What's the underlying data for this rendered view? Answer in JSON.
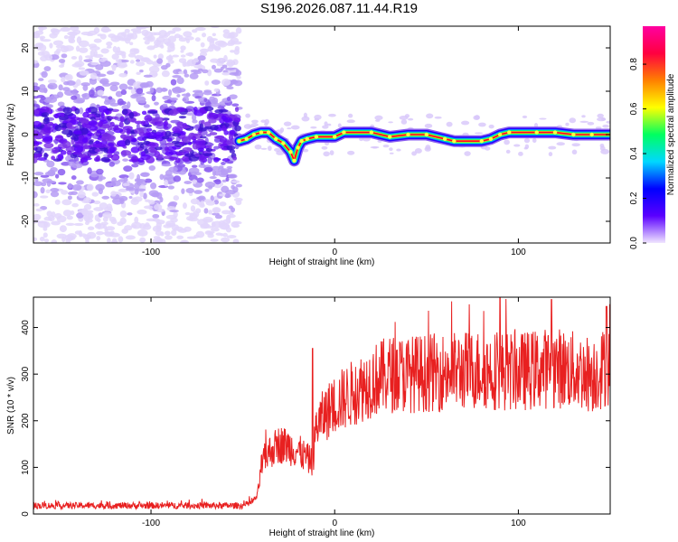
{
  "title": "S196.2026.087.11.44.R19",
  "chart_data": [
    {
      "type": "heatmap",
      "title": "S196.2026.087.11.44.R19",
      "xlabel": "Height of straight line (km)",
      "ylabel": "Frequency (Hz)",
      "xlim": [
        -164,
        150
      ],
      "ylim": [
        -25,
        25
      ],
      "xticks": [
        -100,
        0,
        100
      ],
      "yticks": [
        -20,
        -10,
        0,
        10,
        20
      ],
      "colorbar": {
        "label": "Normalized spectral amplitude",
        "range": [
          0,
          0.97
        ],
        "ticks": [
          0.0,
          0.2,
          0.4,
          0.6,
          0.8
        ],
        "colors": [
          "#f0e6ff",
          "#5a00ff",
          "#0000ff",
          "#00d8ff",
          "#00ff60",
          "#ffff00",
          "#ff8000",
          "#ff0040",
          "#ff00a0"
        ]
      },
      "noise_region_x": [
        -164,
        -52
      ],
      "ridge": {
        "x": [
          -52,
          -48,
          -44,
          -40,
          -36,
          -32,
          -28,
          -24,
          -22,
          -20,
          -18,
          -15,
          -10,
          0,
          5,
          20,
          30,
          40,
          50,
          60,
          65,
          80,
          85,
          90,
          95,
          110,
          120,
          130,
          140,
          150
        ],
        "y": [
          -1.5,
          -1,
          0,
          0.5,
          0.5,
          -1,
          -2,
          -4,
          -6,
          -3,
          -1.5,
          -1,
          -0.5,
          -0.5,
          0.5,
          0.5,
          -0.5,
          0,
          0,
          -1,
          -1.5,
          -1.5,
          -1,
          0,
          0.5,
          0.5,
          0.5,
          0,
          0,
          0
        ]
      }
    },
    {
      "type": "line",
      "xlabel": "Height of straight line (km)",
      "ylabel": "SNR (10 * v/v)",
      "xlim": [
        -164,
        150
      ],
      "ylim": [
        0,
        465
      ],
      "xticks": [
        -100,
        0,
        100
      ],
      "yticks": [
        0,
        100,
        200,
        300,
        400
      ],
      "color": "#e82020",
      "series": [
        {
          "name": "SNR",
          "x": [
            -164,
            -120,
            -80,
            -50,
            -45,
            -42,
            -40,
            -38,
            -35,
            -30,
            -25,
            -20,
            -15,
            -12,
            -10,
            -5,
            0,
            10,
            20,
            30,
            40,
            60,
            80,
            100,
            120,
            140,
            150
          ],
          "y": [
            18,
            18,
            18,
            18,
            25,
            40,
            100,
            120,
            135,
            150,
            145,
            135,
            120,
            110,
            190,
            215,
            235,
            260,
            285,
            300,
            300,
            305,
            310,
            305,
            315,
            300,
            320
          ],
          "spikes": [
            {
              "x": -12,
              "y": 355
            },
            {
              "x": 90,
              "y": 465
            },
            {
              "x": 118,
              "y": 460
            },
            {
              "x": 148,
              "y": 445
            }
          ]
        }
      ]
    }
  ]
}
